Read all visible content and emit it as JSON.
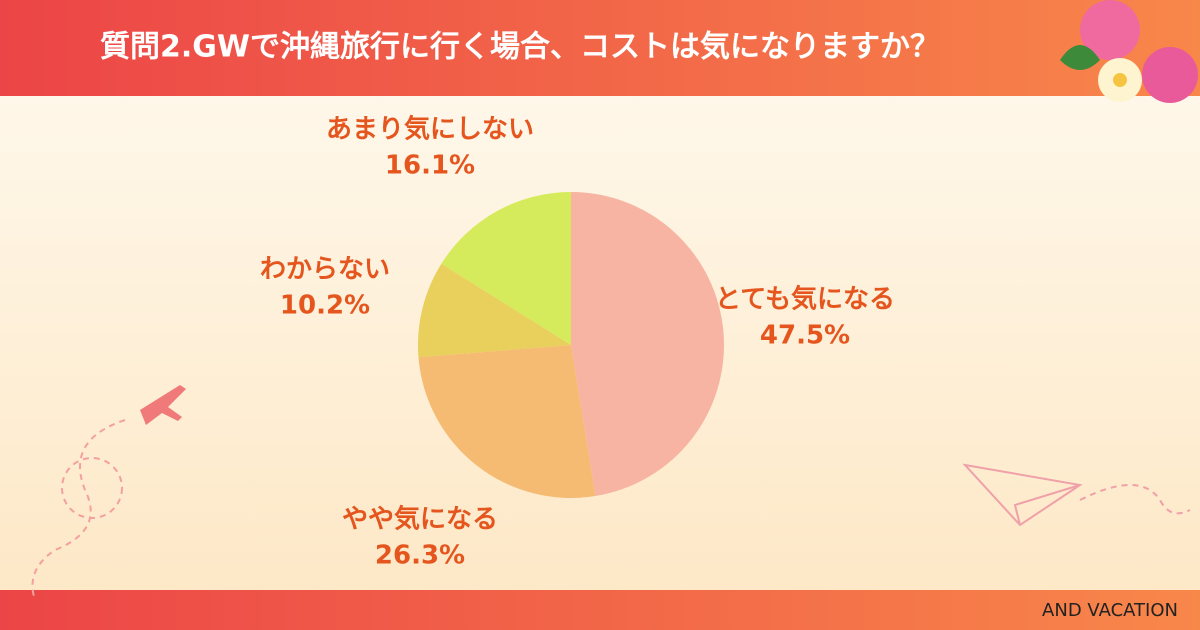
{
  "chart_data": {
    "type": "pie",
    "title": "質問2.GWで沖縄旅行に行く場合、コストは気になりますか？",
    "categories": [
      "とても気になる",
      "やや気になる",
      "わからない",
      "あまり気にしない"
    ],
    "values": [
      47.5,
      26.3,
      10.2,
      16.1
    ],
    "value_labels": [
      "47.5%",
      "26.3%",
      "10.2%",
      "16.1%"
    ],
    "colors": [
      "#f7b4a2",
      "#f5bb72",
      "#e9cf5b",
      "#d5eb5b"
    ],
    "brand": "AND VACATION"
  }
}
